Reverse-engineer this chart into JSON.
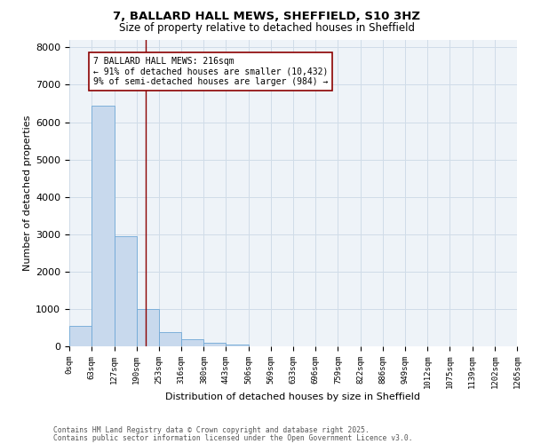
{
  "title1": "7, BALLARD HALL MEWS, SHEFFIELD, S10 3HZ",
  "title2": "Size of property relative to detached houses in Sheffield",
  "xlabel": "Distribution of detached houses by size in Sheffield",
  "ylabel": "Number of detached properties",
  "bar_edges": [
    0,
    63,
    127,
    190,
    253,
    316,
    380,
    443,
    506,
    569,
    633,
    696,
    759,
    822,
    886,
    949,
    1012,
    1075,
    1139,
    1202,
    1265
  ],
  "bar_heights": [
    550,
    6450,
    2950,
    1000,
    380,
    180,
    90,
    50,
    0,
    0,
    0,
    0,
    0,
    0,
    0,
    0,
    0,
    0,
    0,
    0
  ],
  "bar_color": "#c8d9ed",
  "bar_edge_color": "#6fa8d6",
  "property_line_x": 216,
  "property_line_color": "#8b0000",
  "annotation_line1": "7 BALLARD HALL MEWS: 216sqm",
  "annotation_line2": "← 91% of detached houses are smaller (10,432)",
  "annotation_line3": "9% of semi-detached houses are larger (984) →",
  "annotation_box_color": "#8b0000",
  "tick_labels": [
    "0sqm",
    "63sqm",
    "127sqm",
    "190sqm",
    "253sqm",
    "316sqm",
    "380sqm",
    "443sqm",
    "506sqm",
    "569sqm",
    "633sqm",
    "696sqm",
    "759sqm",
    "822sqm",
    "886sqm",
    "949sqm",
    "1012sqm",
    "1075sqm",
    "1139sqm",
    "1202sqm",
    "1265sqm"
  ],
  "ylim": [
    0,
    8200
  ],
  "yticks": [
    0,
    1000,
    2000,
    3000,
    4000,
    5000,
    6000,
    7000,
    8000
  ],
  "footnote1": "Contains HM Land Registry data © Crown copyright and database right 2025.",
  "footnote2": "Contains public sector information licensed under the Open Government Licence v3.0.",
  "grid_color": "#d0dce8",
  "bg_color": "#eef3f8"
}
